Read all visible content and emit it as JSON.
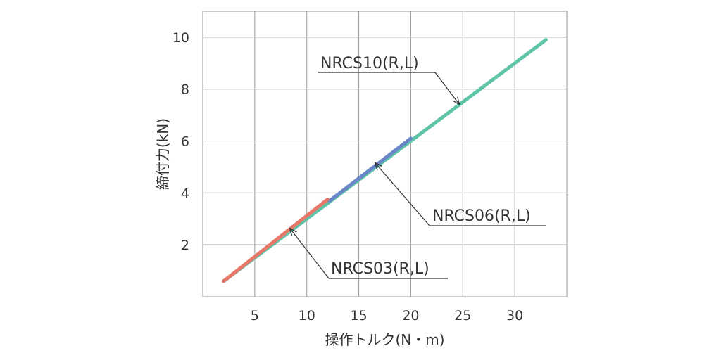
{
  "chart_data": {
    "type": "line",
    "xlabel": "操作トルク(N・m)",
    "ylabel": "締付力(kN)",
    "xlim": [
      0,
      35
    ],
    "ylim": [
      0,
      11
    ],
    "xticks": [
      5,
      10,
      15,
      20,
      25,
      30
    ],
    "yticks": [
      2,
      4,
      6,
      8,
      10
    ],
    "grid": true,
    "series": [
      {
        "name": "NRCS10(R,L)",
        "color": "#5dc4a8",
        "x": [
          2,
          33
        ],
        "y": [
          0.6,
          9.9
        ]
      },
      {
        "name": "NRCS06(R,L)",
        "color": "#6a85c8",
        "x": [
          12.2,
          20
        ],
        "y": [
          3.7,
          6.1
        ]
      },
      {
        "name": "NRCS03(R,L)",
        "color": "#e8776a",
        "x": [
          2,
          12
        ],
        "y": [
          0.6,
          3.75
        ]
      }
    ],
    "annotations": [
      {
        "text": "NRCS10(R,L)",
        "series": 0
      },
      {
        "text": "NRCS06(R,L)",
        "series": 1
      },
      {
        "text": "NRCS03(R,L)",
        "series": 2
      }
    ]
  }
}
